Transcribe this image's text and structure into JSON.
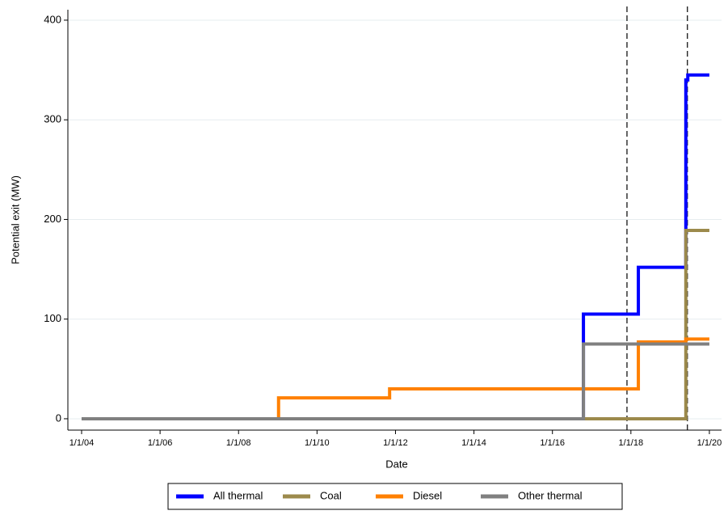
{
  "chart_data": {
    "type": "step",
    "x_label": "Date",
    "y_label": "Potential exit (MW)",
    "xlim": [
      2003.65,
      2020.31
    ],
    "ylim": [
      -11.4,
      410.5
    ],
    "xticks": [
      {
        "value": 2004,
        "label": "1/1/04"
      },
      {
        "value": 2006,
        "label": "1/1/06"
      },
      {
        "value": 2008,
        "label": "1/1/08"
      },
      {
        "value": 2010,
        "label": "1/1/10"
      },
      {
        "value": 2012,
        "label": "1/1/12"
      },
      {
        "value": 2014,
        "label": "1/1/14"
      },
      {
        "value": 2016,
        "label": "1/1/16"
      },
      {
        "value": 2018,
        "label": "1/1/18"
      },
      {
        "value": 2020,
        "label": "1/1/20"
      }
    ],
    "yticks": [
      0,
      100,
      200,
      300,
      400
    ],
    "grid": true,
    "legend": "bottom",
    "vlines": [
      2017.9,
      2019.44
    ],
    "series": [
      {
        "name": "All thermal",
        "color": "#0000ff",
        "x": [
          2004,
          2016.79,
          2018.19,
          2019.4,
          2019.45,
          2020
        ],
        "values": [
          0,
          105,
          152,
          340,
          345,
          345
        ]
      },
      {
        "name": "Coal",
        "color": "#9c8a4c",
        "x": [
          2004,
          2019.4,
          2020
        ],
        "values": [
          0,
          189,
          189
        ]
      },
      {
        "name": "Diesel",
        "color": "#ff8000",
        "x": [
          2004,
          2009.02,
          2011.85,
          2018.19,
          2019.4,
          2020
        ],
        "values": [
          0,
          21,
          30,
          77,
          80,
          80
        ]
      },
      {
        "name": "Other thermal",
        "color": "#808080",
        "x": [
          2004,
          2016.79,
          2020
        ],
        "values": [
          0,
          75,
          75
        ]
      }
    ]
  }
}
